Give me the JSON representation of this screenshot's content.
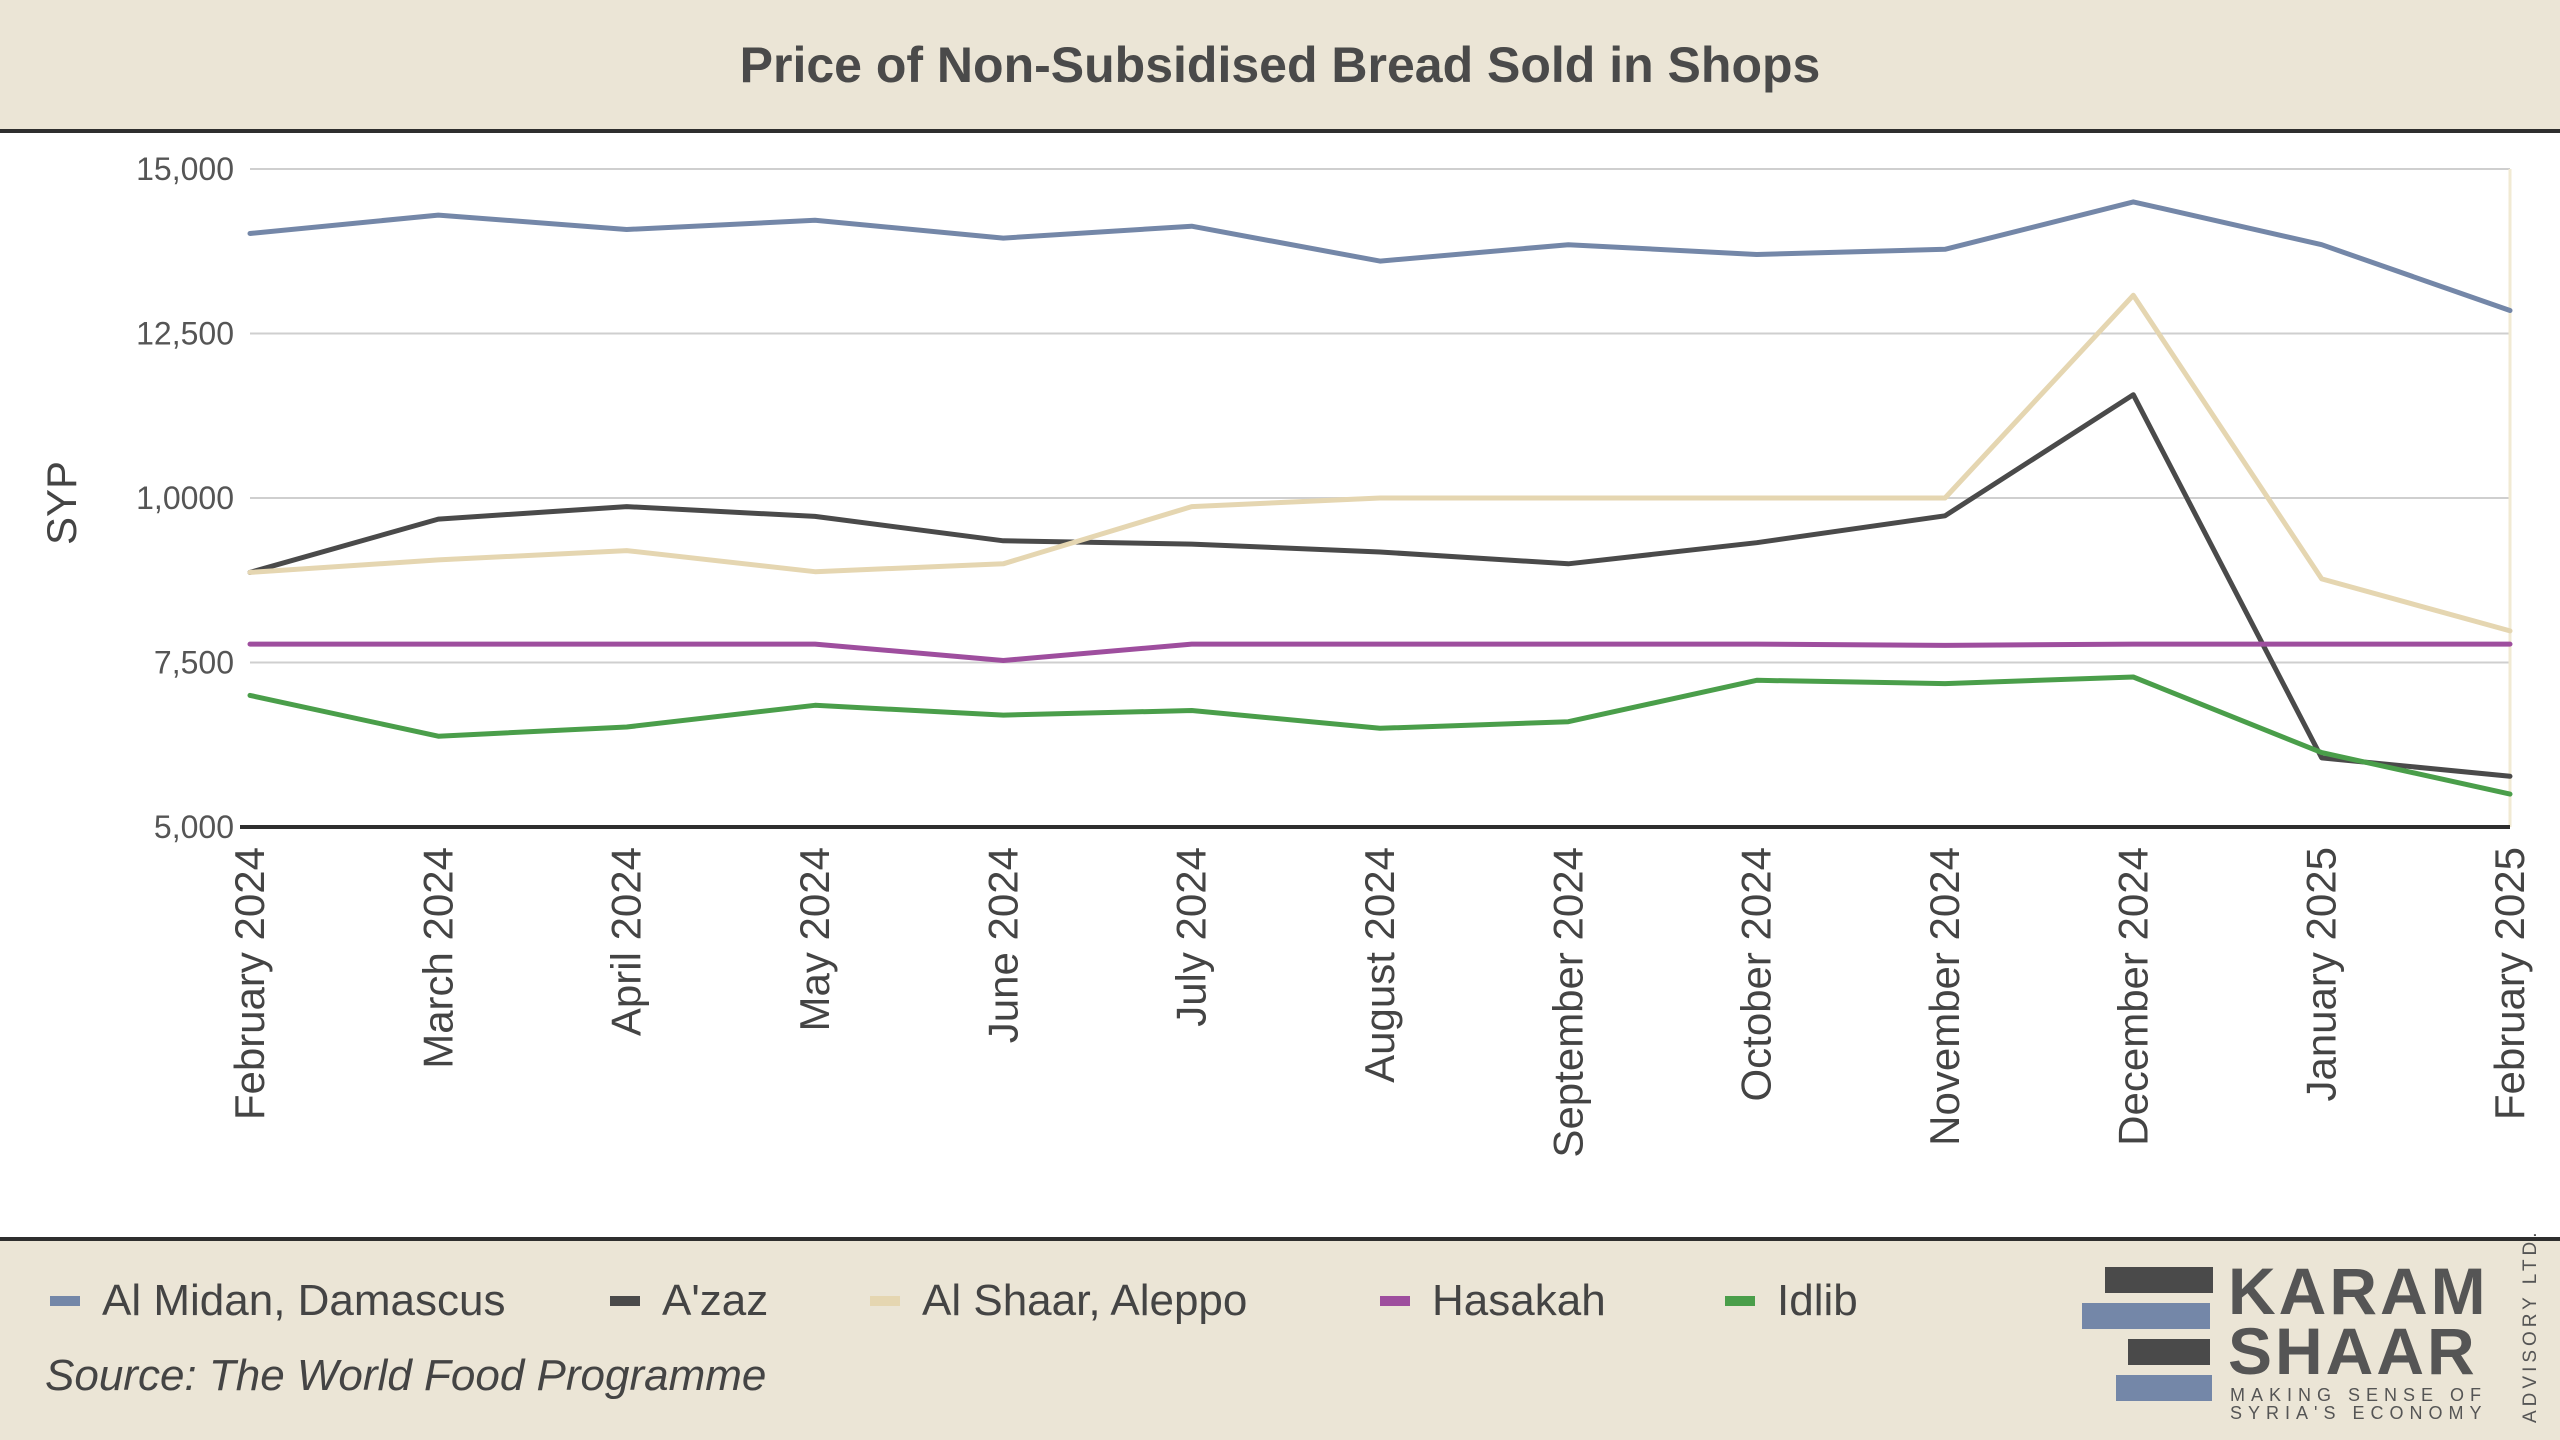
{
  "chart_data": {
    "type": "line",
    "title": "Price of Non-Subsidised Bread Sold in Shops",
    "xlabel": "",
    "ylabel": "SYP",
    "ylim": [
      5000,
      15000
    ],
    "yticks": [
      5000,
      7500,
      10000,
      12500,
      15000
    ],
    "ytick_labels": [
      "5,000",
      "7,500",
      "1,0000",
      "12,500",
      "15,000"
    ],
    "grid": true,
    "legend_position": "bottom",
    "categories": [
      "February 2024",
      "March 2024",
      "April 2024",
      "May 2024",
      "June 2024",
      "July 2024",
      "August 2024",
      "September 2024",
      "October 2024",
      "November 2024",
      "December 2024",
      "January 2025",
      "February 2025"
    ],
    "series": [
      {
        "name": "Al Midan, Damascus",
        "color": "#7487a8",
        "values": [
          14020,
          14300,
          14080,
          14220,
          13950,
          14130,
          13600,
          13850,
          13700,
          13780,
          14500,
          13850,
          12850
        ]
      },
      {
        "name": "A'zaz",
        "color": "#4a4a4a",
        "values": [
          8870,
          9680,
          9870,
          9720,
          9350,
          9300,
          9180,
          9000,
          9320,
          9730,
          11570,
          6050,
          5770
        ]
      },
      {
        "name": "Al Shaar, Aleppo",
        "color": "#e5d6b1",
        "values": [
          8870,
          9060,
          9200,
          8880,
          9000,
          9870,
          10000,
          10000,
          10000,
          10000,
          13080,
          8770,
          7980
        ]
      },
      {
        "name": "Hasakah",
        "color": "#9e4e9e",
        "values": [
          7780,
          7780,
          7780,
          7780,
          7530,
          7780,
          7780,
          7780,
          7780,
          7760,
          7780,
          7780,
          7780
        ]
      },
      {
        "name": "Idlib",
        "color": "#4a9e4a",
        "values": [
          7000,
          6380,
          6520,
          6850,
          6700,
          6770,
          6500,
          6600,
          7230,
          7180,
          7280,
          6130,
          5500
        ]
      }
    ]
  },
  "footer": {
    "source": "Source: The World Food Programme"
  },
  "logo": {
    "line1": "KARAM",
    "line2": "SHAAR",
    "tagline1": "MAKING SENSE OF",
    "tagline2": "SYRIA'S ECONOMY",
    "side": "ADVISORY LTD.",
    "dark_color": "#4a4a4a",
    "accent_color": "#7487a8"
  }
}
